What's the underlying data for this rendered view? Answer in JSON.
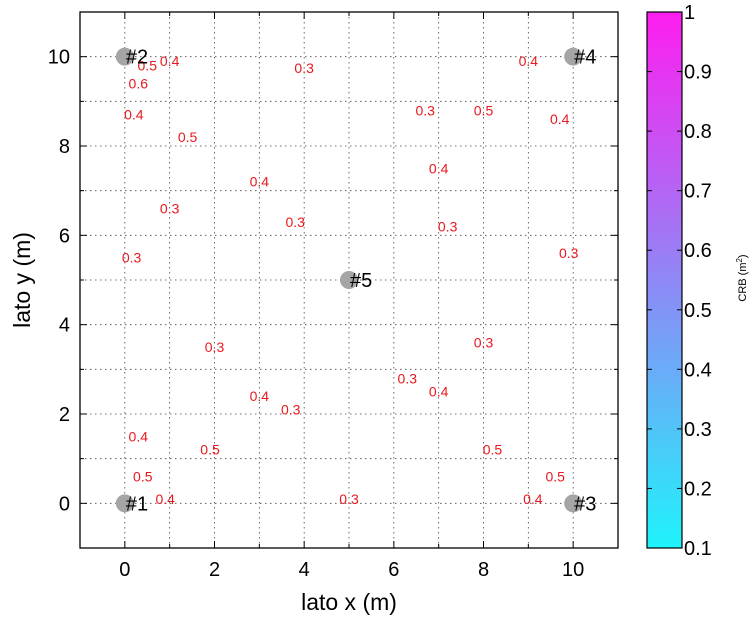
{
  "chart_data": {
    "type": "contour",
    "xlabel": "lato x (m)",
    "ylabel": "lato y (m)",
    "xlim": [
      -1,
      11
    ],
    "ylim": [
      -1,
      11
    ],
    "xticks": [
      "0",
      "2",
      "4",
      "6",
      "8",
      "10"
    ],
    "yticks": [
      "0",
      "2",
      "4",
      "6",
      "8",
      "10"
    ],
    "grid": "dotted",
    "colormap": "cool",
    "colormap_start": "#1ff3fb",
    "colormap_end": "#ff1df0",
    "contour_color_low": "#45c9f0",
    "contour_color_high": "#8a4ff7",
    "label_color": "#e8191e",
    "colorbar": {
      "label": "CRB (m",
      "label_sup": "2",
      "label_close": ")",
      "range": [
        0.1,
        1
      ],
      "ticks": [
        "0.1",
        "0.2",
        "0.3",
        "0.4",
        "0.5",
        "0.6",
        "0.7",
        "0.8",
        "0.9",
        "1"
      ]
    },
    "anchors": [
      {
        "label": "#1",
        "x": 0,
        "y": 0
      },
      {
        "label": "#2",
        "x": 0,
        "y": 10
      },
      {
        "label": "#3",
        "x": 10,
        "y": 0
      },
      {
        "label": "#4",
        "x": 10,
        "y": 10
      },
      {
        "label": "#5",
        "x": 5,
        "y": 5
      }
    ],
    "contour_levels": [
      0.3,
      0.4,
      0.5,
      0.6,
      0.7,
      0.8
    ],
    "contour_labels": [
      {
        "text": "0.3",
        "x": 4.0,
        "y": 9.75
      },
      {
        "text": "0.3",
        "x": 6.7,
        "y": 8.8
      },
      {
        "text": "0.3",
        "x": 3.8,
        "y": 6.3
      },
      {
        "text": "0.3",
        "x": 1.0,
        "y": 6.6
      },
      {
        "text": "0.3",
        "x": 0.15,
        "y": 5.5
      },
      {
        "text": "0.3",
        "x": 7.2,
        "y": 6.2
      },
      {
        "text": "0.3",
        "x": 9.9,
        "y": 5.6
      },
      {
        "text": "0.3",
        "x": 2.0,
        "y": 3.5
      },
      {
        "text": "0.3",
        "x": 8.0,
        "y": 3.6
      },
      {
        "text": "0.3",
        "x": 3.7,
        "y": 2.1
      },
      {
        "text": "0.3",
        "x": 6.3,
        "y": 2.8
      },
      {
        "text": "0.3",
        "x": 5.0,
        "y": 0.1
      },
      {
        "text": "0.4",
        "x": 0.2,
        "y": 8.7
      },
      {
        "text": "0.5",
        "x": 1.4,
        "y": 8.2
      },
      {
        "text": "0.4",
        "x": 3.0,
        "y": 7.2
      },
      {
        "text": "0.4",
        "x": 1.0,
        "y": 9.9
      },
      {
        "text": "0.5",
        "x": 0.5,
        "y": 9.8
      },
      {
        "text": "0.6",
        "x": 0.3,
        "y": 9.4
      },
      {
        "text": "0.4",
        "x": 9.0,
        "y": 9.9
      },
      {
        "text": "0.5",
        "x": 8.0,
        "y": 8.8
      },
      {
        "text": "0.4",
        "x": 7.0,
        "y": 7.5
      },
      {
        "text": "0.4",
        "x": 9.7,
        "y": 8.6
      },
      {
        "text": "0.4",
        "x": 0.3,
        "y": 1.5
      },
      {
        "text": "0.5",
        "x": 1.9,
        "y": 1.2
      },
      {
        "text": "0.4",
        "x": 3.0,
        "y": 2.4
      },
      {
        "text": "0.4",
        "x": 0.9,
        "y": 0.1
      },
      {
        "text": "0.5",
        "x": 0.4,
        "y": 0.6
      },
      {
        "text": "0.4",
        "x": 7.0,
        "y": 2.5
      },
      {
        "text": "0.5",
        "x": 8.2,
        "y": 1.2
      },
      {
        "text": "0.4",
        "x": 9.1,
        "y": 0.1
      },
      {
        "text": "0.5",
        "x": 9.6,
        "y": 0.6
      }
    ]
  }
}
